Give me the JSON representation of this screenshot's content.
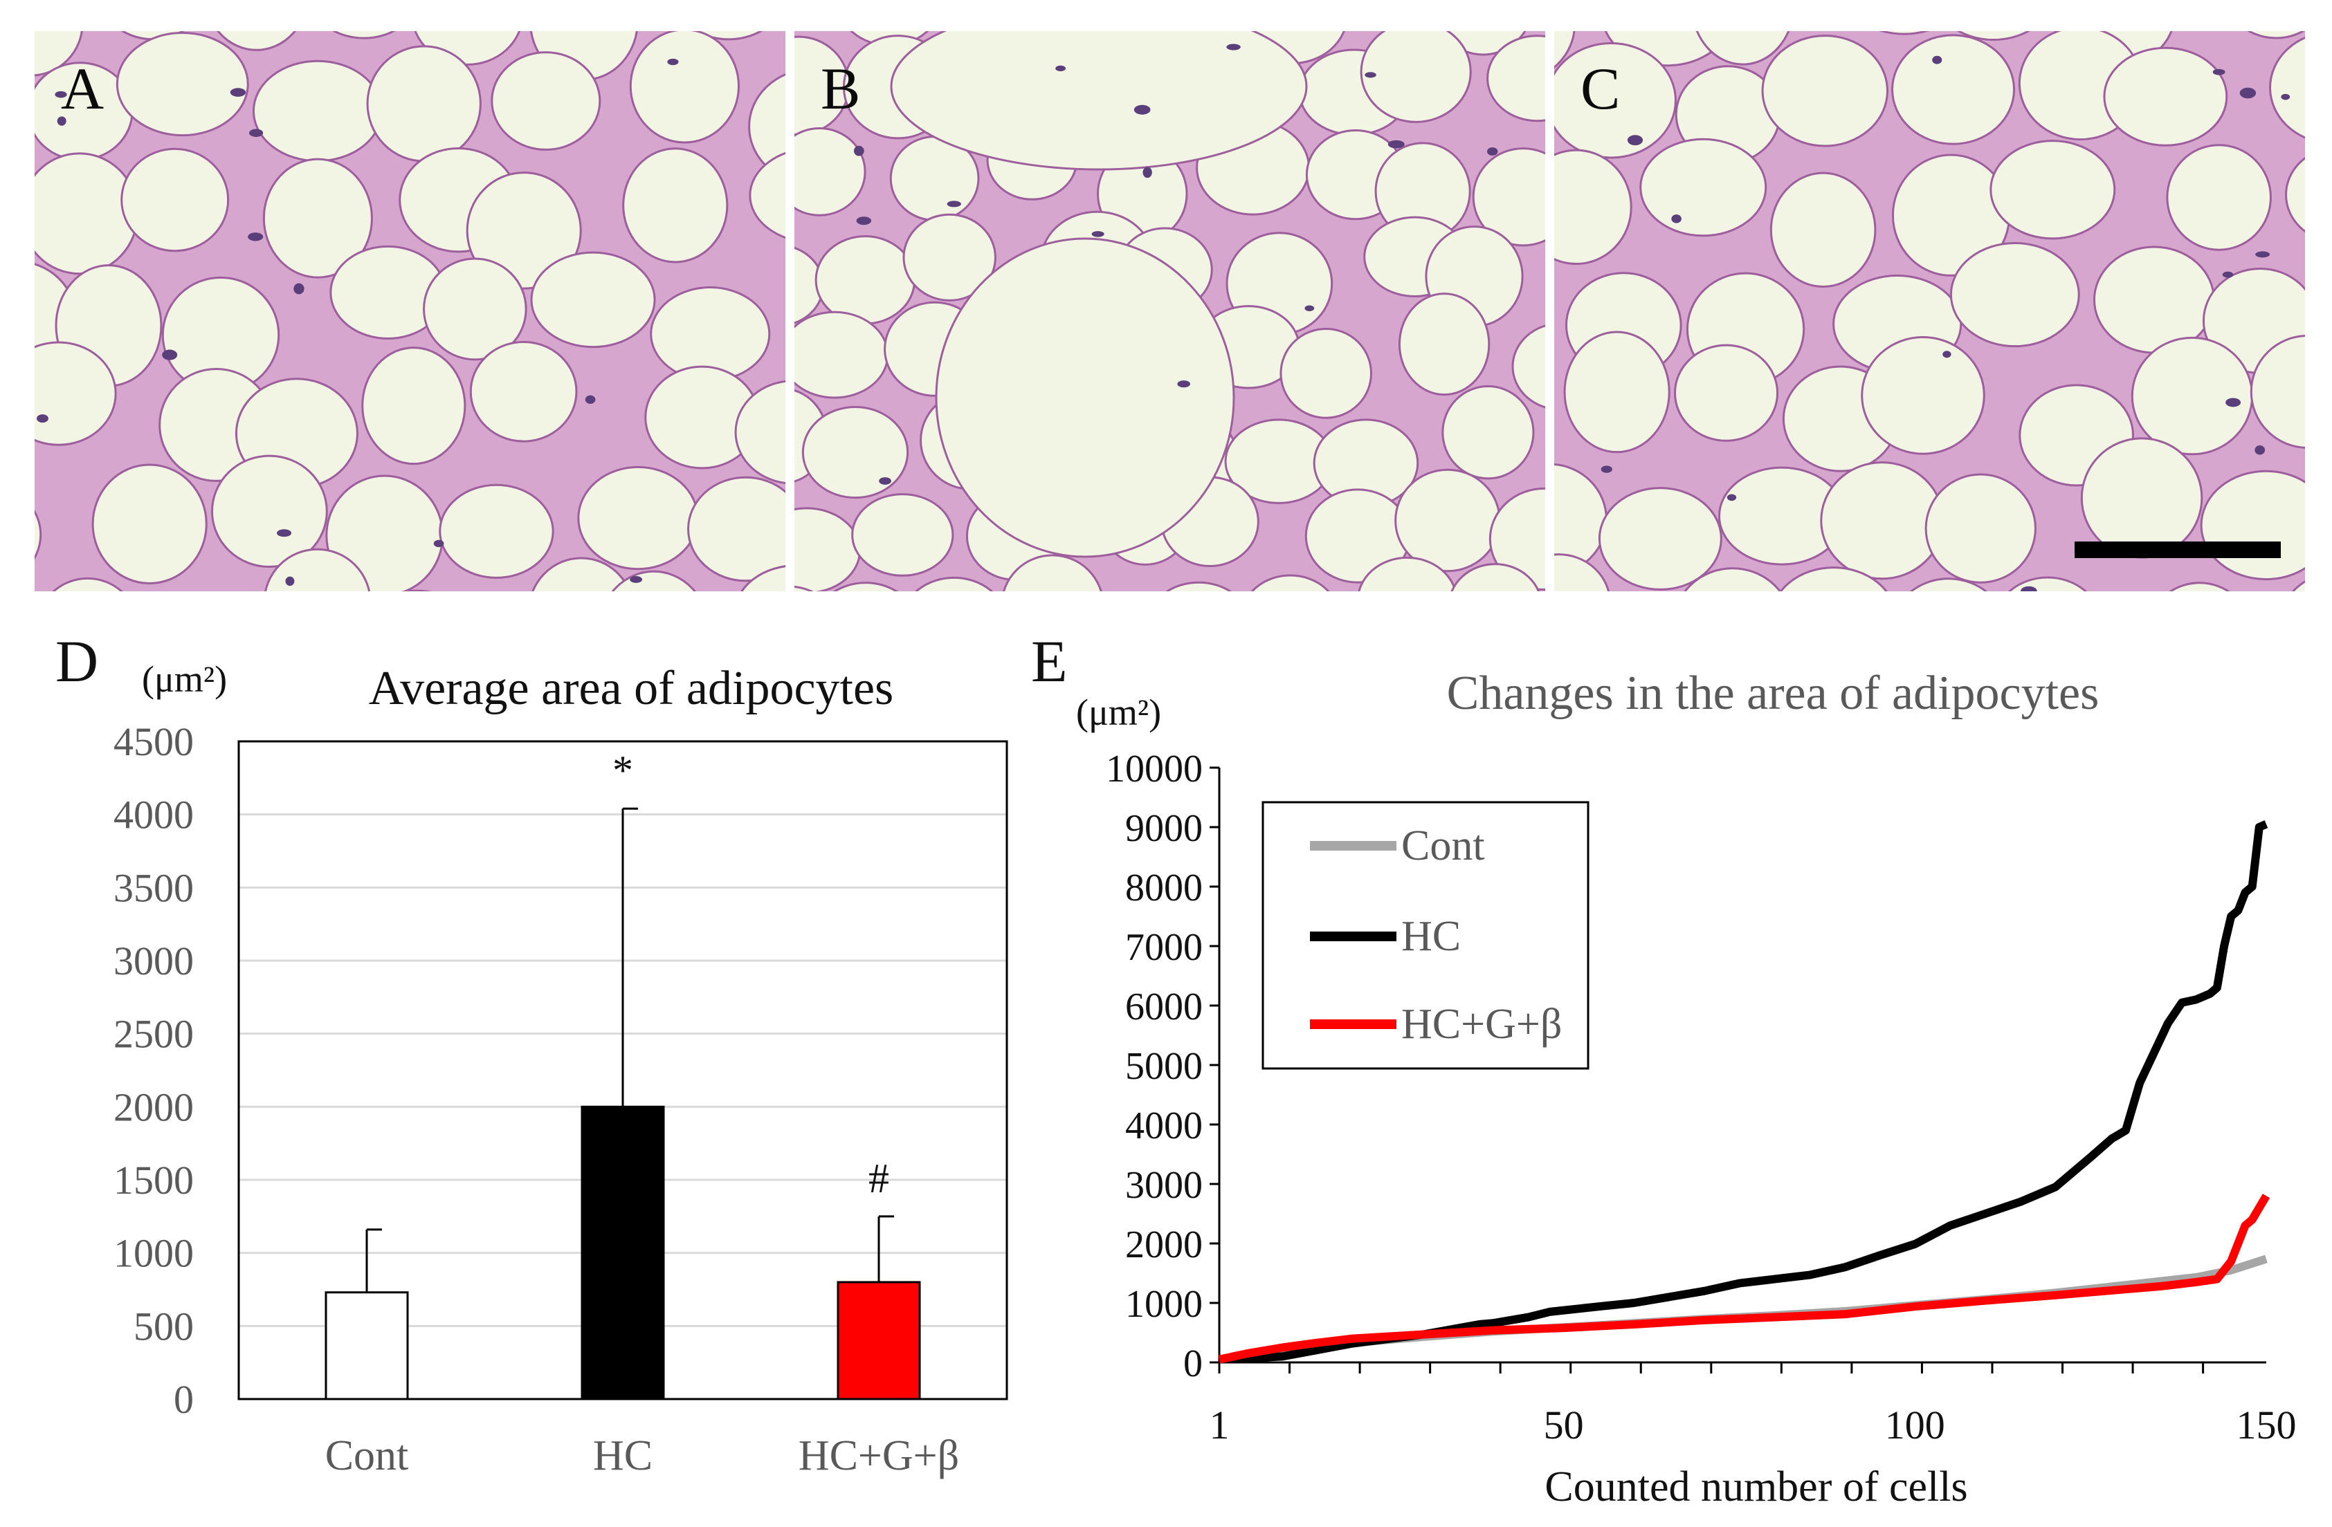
{
  "figure": {
    "panels": [
      {
        "letter": "A"
      },
      {
        "letter": "B"
      },
      {
        "letter": "C"
      }
    ]
  },
  "chart_data": [
    {
      "panel_letter": "D",
      "type": "bar",
      "title": "Average area of adipocytes",
      "ylabel": "(μm²)",
      "categories": [
        "Cont",
        "HC",
        "HC+G+β"
      ],
      "values": [
        730,
        2000,
        800
      ],
      "errors": [
        430,
        2040,
        450
      ],
      "annotations": [
        "",
        "*",
        "#"
      ],
      "colors": [
        "#ffffff",
        "#000000",
        "#ff0000"
      ],
      "ylim": [
        0,
        4500
      ],
      "yticks": [
        0,
        500,
        1000,
        1500,
        2000,
        2500,
        3000,
        3500,
        4000,
        4500
      ],
      "grid": true
    },
    {
      "panel_letter": "E",
      "type": "line",
      "title": "Changes in the area of adipocytes",
      "ylabel": "(μm²)",
      "xlabel": "Counted number of cells",
      "xlim": [
        1,
        150
      ],
      "xticks": [
        1,
        50,
        100,
        150
      ],
      "ylim": [
        0,
        10000
      ],
      "yticks": [
        0,
        1000,
        2000,
        3000,
        4000,
        5000,
        6000,
        7000,
        8000,
        9000,
        10000
      ],
      "legend_position": "top-left",
      "series": [
        {
          "name": "Cont",
          "color": "#a6a6a6",
          "x": [
            1,
            10,
            20,
            30,
            40,
            50,
            60,
            70,
            80,
            90,
            100,
            110,
            120,
            130,
            140,
            145,
            150
          ],
          "y": [
            50,
            200,
            330,
            430,
            520,
            590,
            660,
            730,
            790,
            860,
            960,
            1060,
            1170,
            1300,
            1430,
            1550,
            1740
          ]
        },
        {
          "name": "HC",
          "color": "#000000",
          "x": [
            1,
            10,
            20,
            30,
            38,
            40,
            45,
            48,
            55,
            60,
            65,
            70,
            75,
            80,
            85,
            90,
            95,
            100,
            105,
            110,
            115,
            120,
            125,
            128,
            130,
            132,
            134,
            136,
            138,
            140,
            142,
            143,
            144,
            145,
            146,
            147,
            148,
            149,
            150
          ],
          "y": [
            50,
            100,
            320,
            470,
            640,
            660,
            760,
            850,
            940,
            1000,
            1100,
            1200,
            1330,
            1400,
            1470,
            1600,
            1800,
            1990,
            2300,
            2500,
            2700,
            2950,
            3450,
            3760,
            3900,
            4700,
            5200,
            5700,
            6050,
            6100,
            6200,
            6300,
            7000,
            7500,
            7600,
            7900,
            8000,
            9000,
            9050
          ]
        },
        {
          "name": "HC+G+β",
          "color": "#ff0000",
          "x": [
            1,
            5,
            10,
            15,
            20,
            30,
            40,
            50,
            60,
            70,
            80,
            90,
            100,
            110,
            120,
            130,
            135,
            140,
            143,
            145,
            147,
            148,
            149,
            150
          ],
          "y": [
            50,
            150,
            250,
            330,
            400,
            470,
            540,
            580,
            640,
            710,
            760,
            810,
            940,
            1040,
            1130,
            1230,
            1280,
            1350,
            1400,
            1700,
            2300,
            2400,
            2600,
            2800
          ]
        }
      ]
    }
  ]
}
